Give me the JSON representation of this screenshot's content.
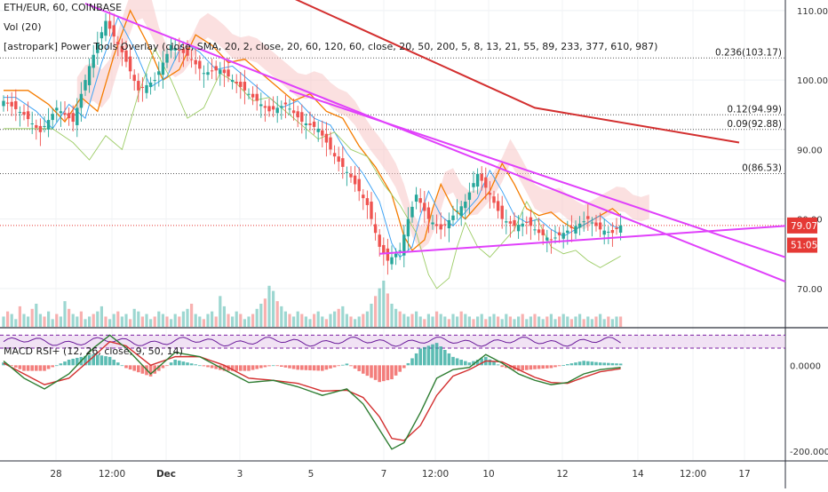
{
  "chart_data": [
    {
      "type": "candlestick",
      "title": "ETH/EUR, 60, COINBASE",
      "symbol": "ETH/EUR",
      "interval": "60",
      "exchange": "COINBASE",
      "indicators": [
        "Vol (20)",
        "[astropark] Power Tools Overlay (close, SMA, 20, 2, close, 20, 60, 120, 60, close, 20, 50, 200, 5, 8, 13, 21, 55, 89, 233, 377, 610, 987)"
      ],
      "ylim": [
        65,
        111
      ],
      "y_ticks": [
        "110.00",
        "100.00",
        "90.00",
        "80.00",
        "70.00"
      ],
      "x_ticks": [
        "28",
        "12:00",
        "Dec",
        "3",
        "5",
        "7",
        "12:00",
        "10",
        "12",
        "14",
        "12:00",
        "17"
      ],
      "fib_levels": [
        {
          "label": "0.236(103.17)",
          "value": 103.17
        },
        {
          "label": "0.12(94.99)",
          "value": 94.99
        },
        {
          "label": "0.09(92.88)",
          "value": 92.88
        },
        {
          "label": "0(86.53)",
          "value": 86.53
        }
      ],
      "last_price": {
        "label": "79.07",
        "value": 79.07,
        "color": "#e53935"
      },
      "countdown": {
        "label": "51:05",
        "value": 76.3,
        "color": "#e53935"
      },
      "close_path": [
        {
          "x": 0,
          "y": 97.0
        },
        {
          "x": 5,
          "y": 95.0
        },
        {
          "x": 9,
          "y": 92.5
        },
        {
          "x": 13,
          "y": 96.0
        },
        {
          "x": 17,
          "y": 94.0
        },
        {
          "x": 21,
          "y": 102.0
        },
        {
          "x": 25,
          "y": 108.5
        },
        {
          "x": 29,
          "y": 104.0
        },
        {
          "x": 33,
          "y": 98.5
        },
        {
          "x": 37,
          "y": 100.0
        },
        {
          "x": 41,
          "y": 105.0
        },
        {
          "x": 45,
          "y": 103.5
        },
        {
          "x": 49,
          "y": 101.0
        },
        {
          "x": 53,
          "y": 101.5
        },
        {
          "x": 57,
          "y": 99.5
        },
        {
          "x": 61,
          "y": 97.5
        },
        {
          "x": 65,
          "y": 95.5
        },
        {
          "x": 69,
          "y": 96.5
        },
        {
          "x": 73,
          "y": 94.0
        },
        {
          "x": 77,
          "y": 93.0
        },
        {
          "x": 81,
          "y": 89.0
        },
        {
          "x": 85,
          "y": 86.0
        },
        {
          "x": 89,
          "y": 82.0
        },
        {
          "x": 92,
          "y": 76.0
        },
        {
          "x": 94,
          "y": 74.0
        },
        {
          "x": 97,
          "y": 75.5
        },
        {
          "x": 99,
          "y": 80.0
        },
        {
          "x": 101,
          "y": 83.5
        },
        {
          "x": 104,
          "y": 80.0
        },
        {
          "x": 107,
          "y": 78.5
        },
        {
          "x": 110,
          "y": 80.5
        },
        {
          "x": 113,
          "y": 82.5
        },
        {
          "x": 116,
          "y": 86.5
        },
        {
          "x": 119,
          "y": 83.5
        },
        {
          "x": 122,
          "y": 80.0
        },
        {
          "x": 125,
          "y": 79.0
        },
        {
          "x": 128,
          "y": 79.5
        },
        {
          "x": 131,
          "y": 78.0
        },
        {
          "x": 134,
          "y": 77.0
        },
        {
          "x": 137,
          "y": 78.0
        },
        {
          "x": 140,
          "y": 79.0
        },
        {
          "x": 143,
          "y": 80.0
        },
        {
          "x": 146,
          "y": 78.5
        },
        {
          "x": 149,
          "y": 78.0
        },
        {
          "x": 151,
          "y": 79.07
        }
      ],
      "volume_scale_max": 18,
      "volumes": [
        4,
        6,
        5,
        3,
        8,
        5,
        4,
        7,
        9,
        5,
        4,
        6,
        3,
        5,
        4,
        10,
        7,
        5,
        4,
        6,
        3,
        4,
        5,
        6,
        8,
        4,
        3,
        5,
        6,
        4,
        5,
        3,
        7,
        6,
        4,
        5,
        3,
        4,
        6,
        5,
        4,
        3,
        5,
        4,
        6,
        7,
        9,
        5,
        4,
        3,
        5,
        6,
        4,
        12,
        8,
        5,
        4,
        6,
        5,
        3,
        4,
        5,
        7,
        9,
        11,
        16,
        14,
        10,
        8,
        6,
        5,
        4,
        6,
        5,
        4,
        3,
        5,
        6,
        4,
        3,
        5,
        6,
        7,
        8,
        5,
        4,
        3,
        4,
        5,
        6,
        9,
        12,
        15,
        18,
        13,
        9,
        7,
        6,
        5,
        4,
        5,
        6,
        4,
        3,
        5,
        4,
        6,
        5,
        4,
        3,
        5,
        4,
        6,
        5,
        4,
        3,
        4,
        5,
        3,
        4,
        5,
        4,
        3,
        5,
        4,
        3,
        4,
        5,
        3,
        4,
        5,
        4,
        3,
        4,
        5,
        3,
        4,
        5,
        4,
        3,
        4,
        5,
        3,
        4,
        3,
        4,
        5,
        3,
        4,
        3,
        4,
        4
      ],
      "trendlines": [
        {
          "name": "descending-resistance",
          "points": [
            {
              "x": 20,
              "y": 111.0
            },
            {
              "x": 230,
              "y": 71.0
            }
          ],
          "color": "#e040fb"
        },
        {
          "name": "descending-resistance-2",
          "points": [
            {
              "x": 70,
              "y": 98.5
            },
            {
              "x": 230,
              "y": 74.5
            }
          ],
          "color": "#e040fb"
        },
        {
          "name": "ascending-support",
          "points": [
            {
              "x": 92,
              "y": 75.0
            },
            {
              "x": 230,
              "y": 79.0
            }
          ],
          "color": "#e040fb"
        }
      ],
      "long_ma": {
        "color": "#d32f2f",
        "points": [
          {
            "x": 70,
            "y": 112.0
          },
          {
            "x": 100,
            "y": 104.0
          },
          {
            "x": 130,
            "y": 96.0
          },
          {
            "x": 180,
            "y": 91.0
          }
        ]
      }
    },
    {
      "type": "macd_rsi",
      "title": "MACD RSI+ (12, 26, close, 9, 50, 14)",
      "ylim": [
        -210,
        75
      ],
      "y_ticks": [
        "0.0000",
        "-200.0000"
      ],
      "rsi_band": [
        70,
        40
      ],
      "macd_line": [
        {
          "x": 0,
          "y": 10
        },
        {
          "x": 5,
          "y": -30
        },
        {
          "x": 10,
          "y": -55
        },
        {
          "x": 16,
          "y": -20
        },
        {
          "x": 22,
          "y": 40
        },
        {
          "x": 26,
          "y": 70
        },
        {
          "x": 30,
          "y": 40
        },
        {
          "x": 36,
          "y": -20
        },
        {
          "x": 42,
          "y": 30
        },
        {
          "x": 48,
          "y": 20
        },
        {
          "x": 54,
          "y": -10
        },
        {
          "x": 60,
          "y": -40
        },
        {
          "x": 66,
          "y": -35
        },
        {
          "x": 72,
          "y": -50
        },
        {
          "x": 78,
          "y": -70
        },
        {
          "x": 84,
          "y": -55
        },
        {
          "x": 88,
          "y": -90
        },
        {
          "x": 92,
          "y": -150
        },
        {
          "x": 95,
          "y": -195
        },
        {
          "x": 98,
          "y": -180
        },
        {
          "x": 102,
          "y": -110
        },
        {
          "x": 106,
          "y": -30
        },
        {
          "x": 110,
          "y": -10
        },
        {
          "x": 114,
          "y": -5
        },
        {
          "x": 118,
          "y": 25
        },
        {
          "x": 122,
          "y": 5
        },
        {
          "x": 126,
          "y": -20
        },
        {
          "x": 130,
          "y": -35
        },
        {
          "x": 134,
          "y": -45
        },
        {
          "x": 138,
          "y": -40
        },
        {
          "x": 142,
          "y": -20
        },
        {
          "x": 146,
          "y": -10
        },
        {
          "x": 151,
          "y": -5
        }
      ],
      "signal_line": [
        {
          "x": 0,
          "y": 5
        },
        {
          "x": 5,
          "y": -20
        },
        {
          "x": 10,
          "y": -45
        },
        {
          "x": 16,
          "y": -30
        },
        {
          "x": 22,
          "y": 20
        },
        {
          "x": 26,
          "y": 55
        },
        {
          "x": 30,
          "y": 45
        },
        {
          "x": 36,
          "y": 0
        },
        {
          "x": 42,
          "y": 20
        },
        {
          "x": 48,
          "y": 20
        },
        {
          "x": 54,
          "y": 0
        },
        {
          "x": 60,
          "y": -30
        },
        {
          "x": 66,
          "y": -35
        },
        {
          "x": 72,
          "y": -42
        },
        {
          "x": 78,
          "y": -60
        },
        {
          "x": 84,
          "y": -58
        },
        {
          "x": 88,
          "y": -75
        },
        {
          "x": 92,
          "y": -120
        },
        {
          "x": 95,
          "y": -170
        },
        {
          "x": 98,
          "y": -175
        },
        {
          "x": 102,
          "y": -140
        },
        {
          "x": 106,
          "y": -70
        },
        {
          "x": 110,
          "y": -25
        },
        {
          "x": 114,
          "y": -10
        },
        {
          "x": 118,
          "y": 10
        },
        {
          "x": 122,
          "y": 8
        },
        {
          "x": 126,
          "y": -10
        },
        {
          "x": 130,
          "y": -28
        },
        {
          "x": 134,
          "y": -40
        },
        {
          "x": 138,
          "y": -42
        },
        {
          "x": 142,
          "y": -28
        },
        {
          "x": 146,
          "y": -15
        },
        {
          "x": 151,
          "y": -8
        }
      ]
    }
  ]
}
